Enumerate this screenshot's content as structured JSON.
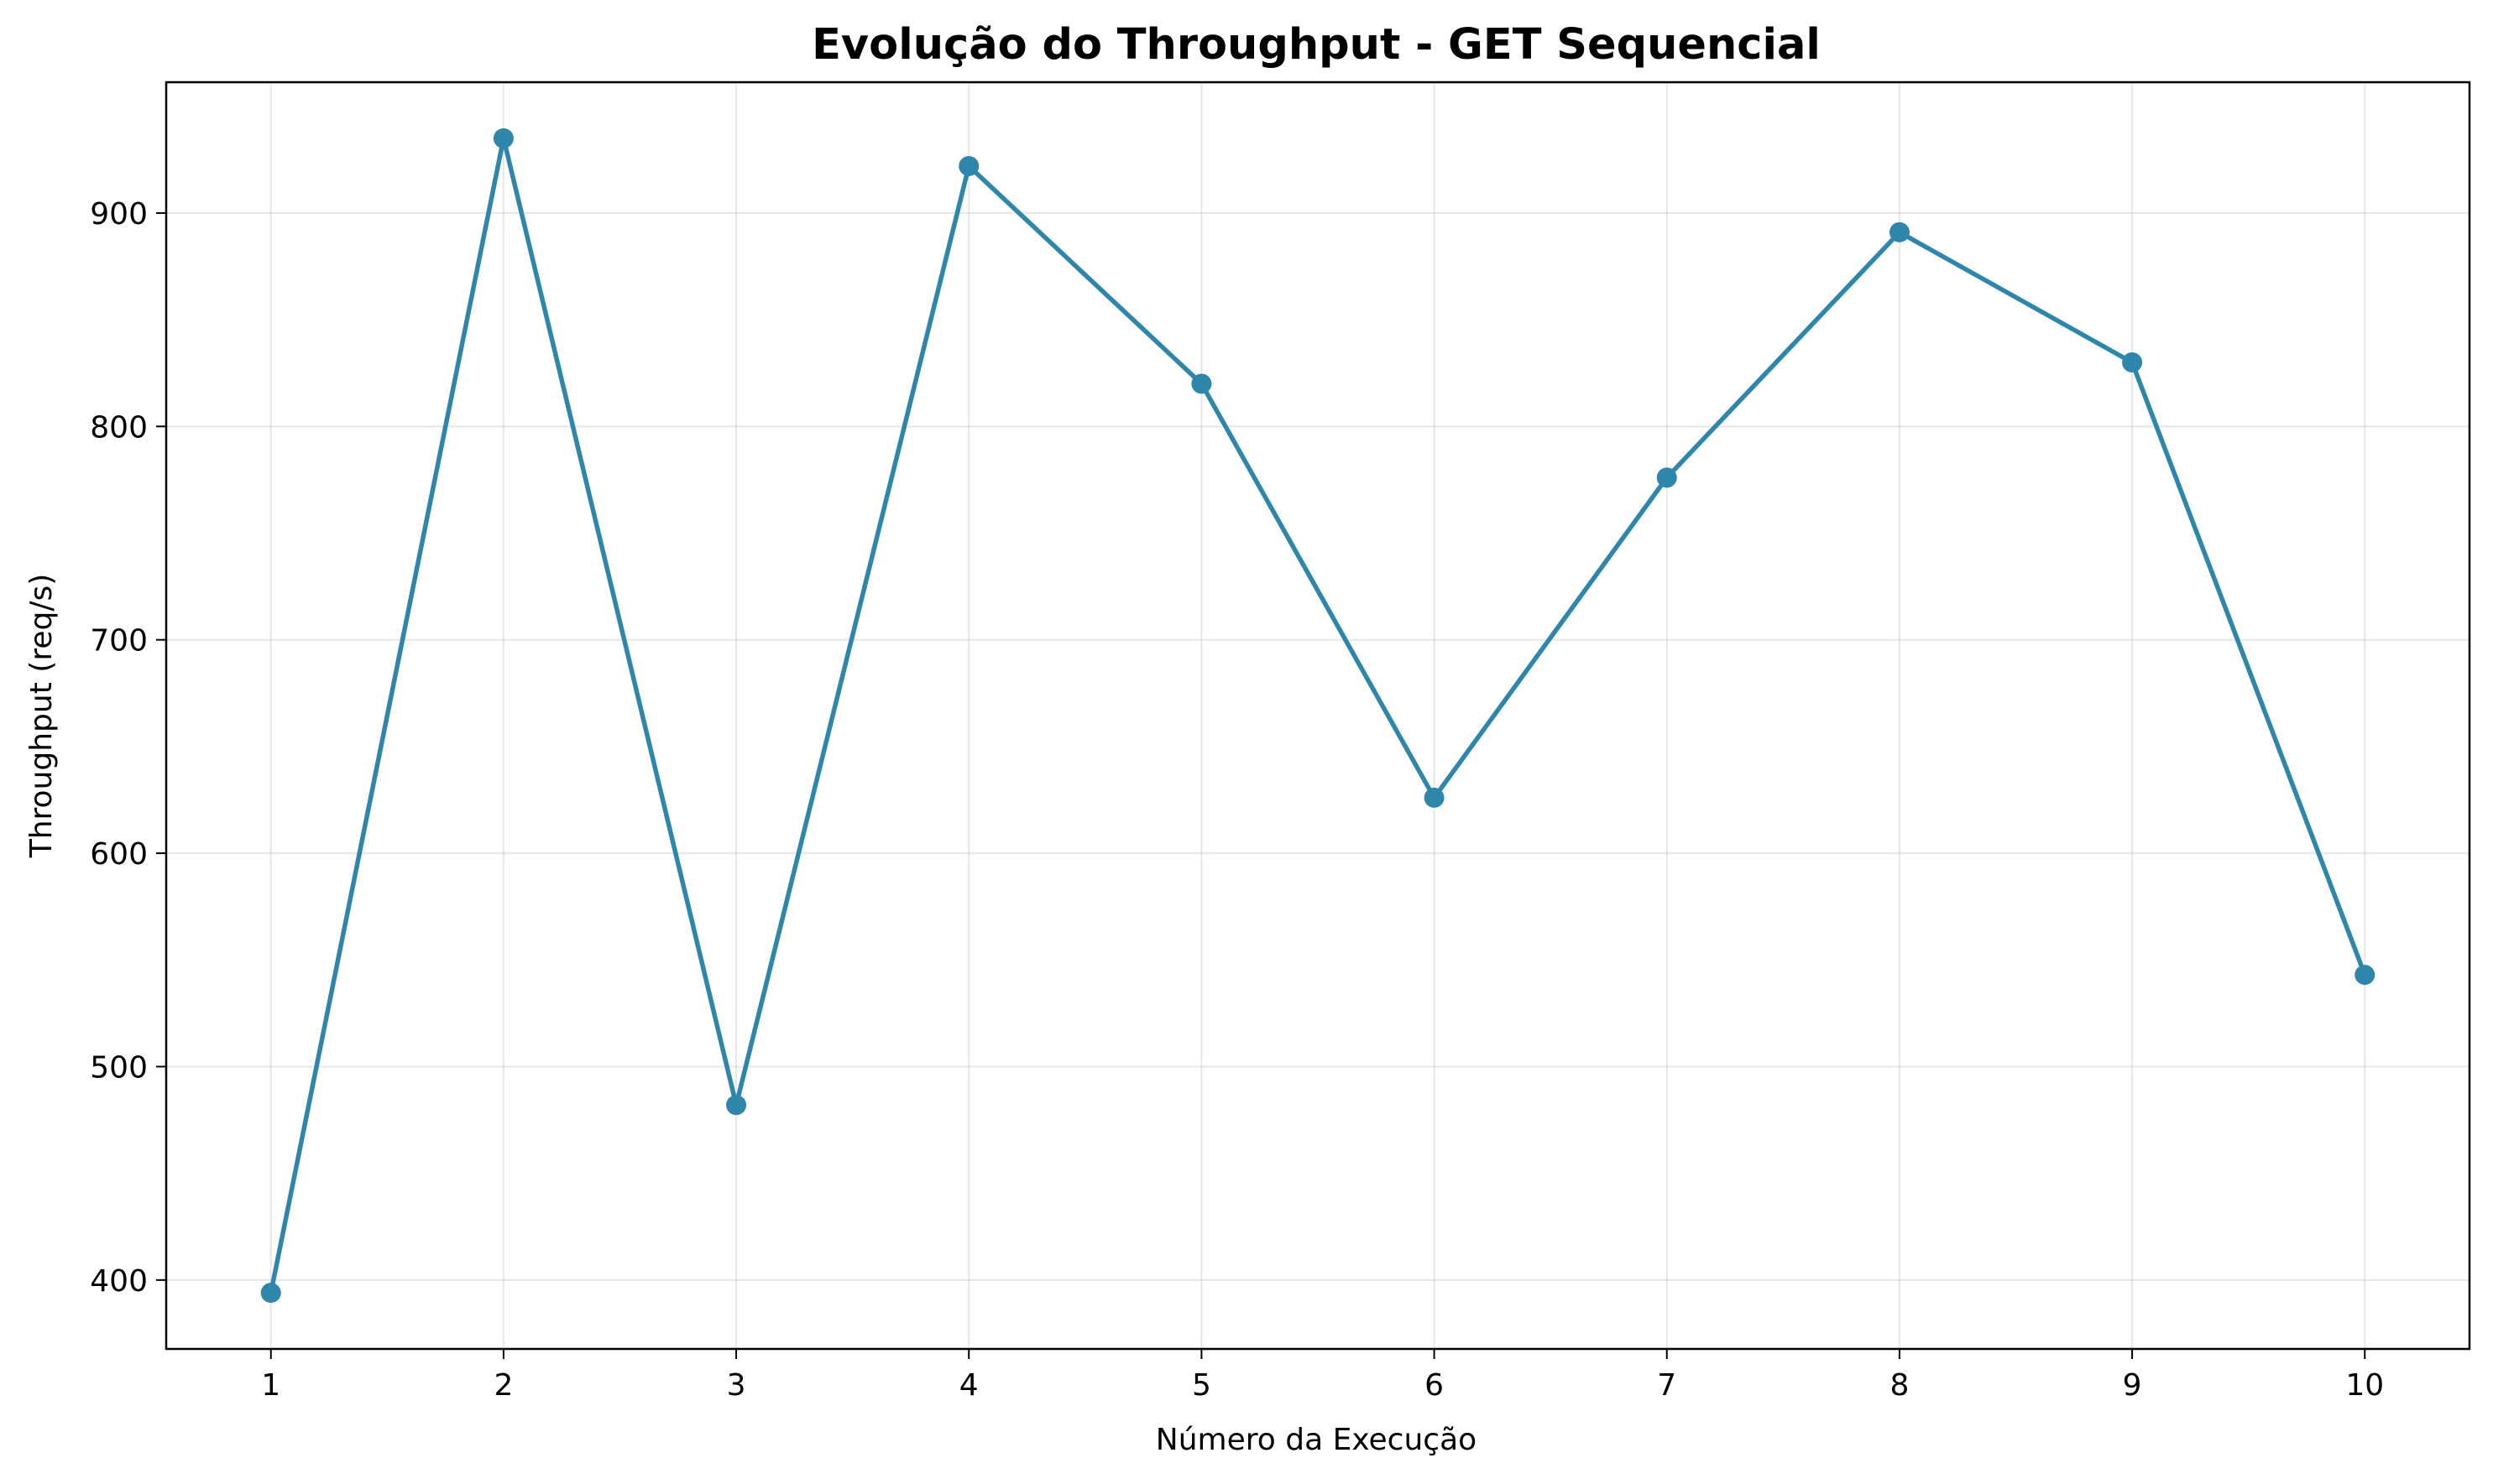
{
  "chart_data": {
    "type": "line",
    "title": "Evolução do Throughput - GET Sequencial",
    "xlabel": "Número da Execução",
    "ylabel": "Throughput (req/s)",
    "x": [
      1,
      2,
      3,
      4,
      5,
      6,
      7,
      8,
      9,
      10
    ],
    "series": [
      {
        "values": [
          394,
          935,
          482,
          922,
          820,
          626,
          776,
          891,
          830,
          543
        ],
        "color": "#2e86ab",
        "marker": "circle"
      }
    ],
    "xlim": [
      0.55,
      10.45
    ],
    "ylim": [
      367.7,
      961.3
    ],
    "xticks": [
      1,
      2,
      3,
      4,
      5,
      6,
      7,
      8,
      9,
      10
    ],
    "yticks": [
      400,
      500,
      600,
      700,
      800,
      900
    ],
    "grid": true
  }
}
